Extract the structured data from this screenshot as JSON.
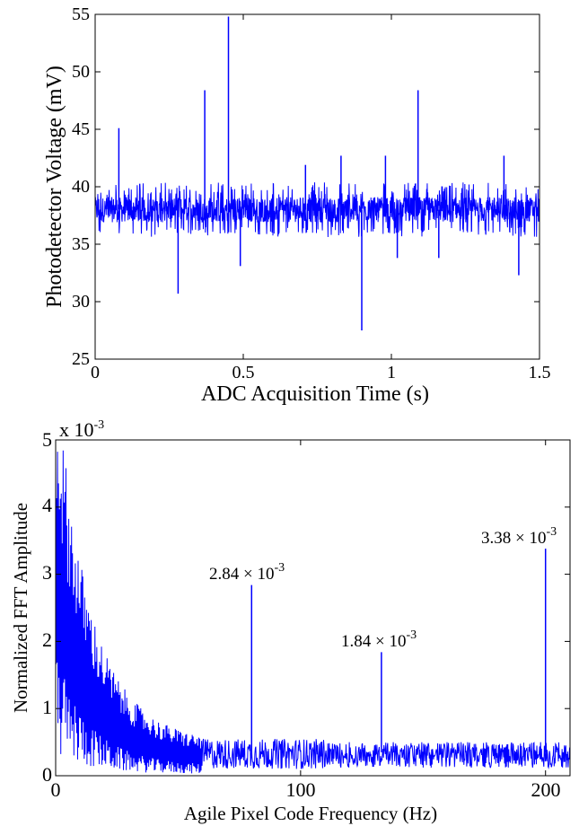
{
  "chart_data": [
    {
      "type": "line",
      "xlabel": "ADC Acquisition Time (s)",
      "ylabel": "Photodetector Voltage (mV)",
      "xlim": [
        0,
        1.5
      ],
      "ylim": [
        25,
        55
      ],
      "xticks": [
        "0",
        "0.5",
        "1",
        "1.5"
      ],
      "yticks": [
        "25",
        "30",
        "35",
        "40",
        "45",
        "50",
        "55"
      ],
      "color": "#0000ff",
      "baseline_band": [
        36.2,
        39.6
      ],
      "spikes": [
        {
          "x": 0.08,
          "y": 45.1
        },
        {
          "x": 0.28,
          "y": 30.7
        },
        {
          "x": 0.37,
          "y": 48.4
        },
        {
          "x": 0.45,
          "y": 54.8
        },
        {
          "x": 0.49,
          "y": 33.1
        },
        {
          "x": 0.71,
          "y": 41.9
        },
        {
          "x": 0.83,
          "y": 42.7
        },
        {
          "x": 0.9,
          "y": 27.5
        },
        {
          "x": 0.98,
          "y": 42.7
        },
        {
          "x": 1.02,
          "y": 33.8
        },
        {
          "x": 1.09,
          "y": 48.4
        },
        {
          "x": 1.16,
          "y": 33.8
        },
        {
          "x": 1.38,
          "y": 42.7
        },
        {
          "x": 1.43,
          "y": 32.3
        }
      ]
    },
    {
      "type": "line",
      "xlabel": "Agile Pixel Code Frequency (Hz)",
      "ylabel": "Normalized FFT Amplitude",
      "xlim": [
        0,
        210
      ],
      "ylim": [
        0,
        5
      ],
      "y_multiplier_label": "x 10",
      "y_multiplier_exp": "-3",
      "xticks": [
        "0",
        "100",
        "200"
      ],
      "yticks": [
        "0",
        "1",
        "2",
        "3",
        "4",
        "5"
      ],
      "color": "#0000ff",
      "peaks": [
        {
          "x": 80,
          "y": 2.84,
          "label": "2.84 × 10",
          "exp": "-3"
        },
        {
          "x": 133,
          "y": 1.84,
          "label": "1.84 × 10",
          "exp": "-3"
        },
        {
          "x": 200,
          "y": 3.38,
          "label": "3.38 × 10",
          "exp": "-3"
        }
      ]
    }
  ]
}
